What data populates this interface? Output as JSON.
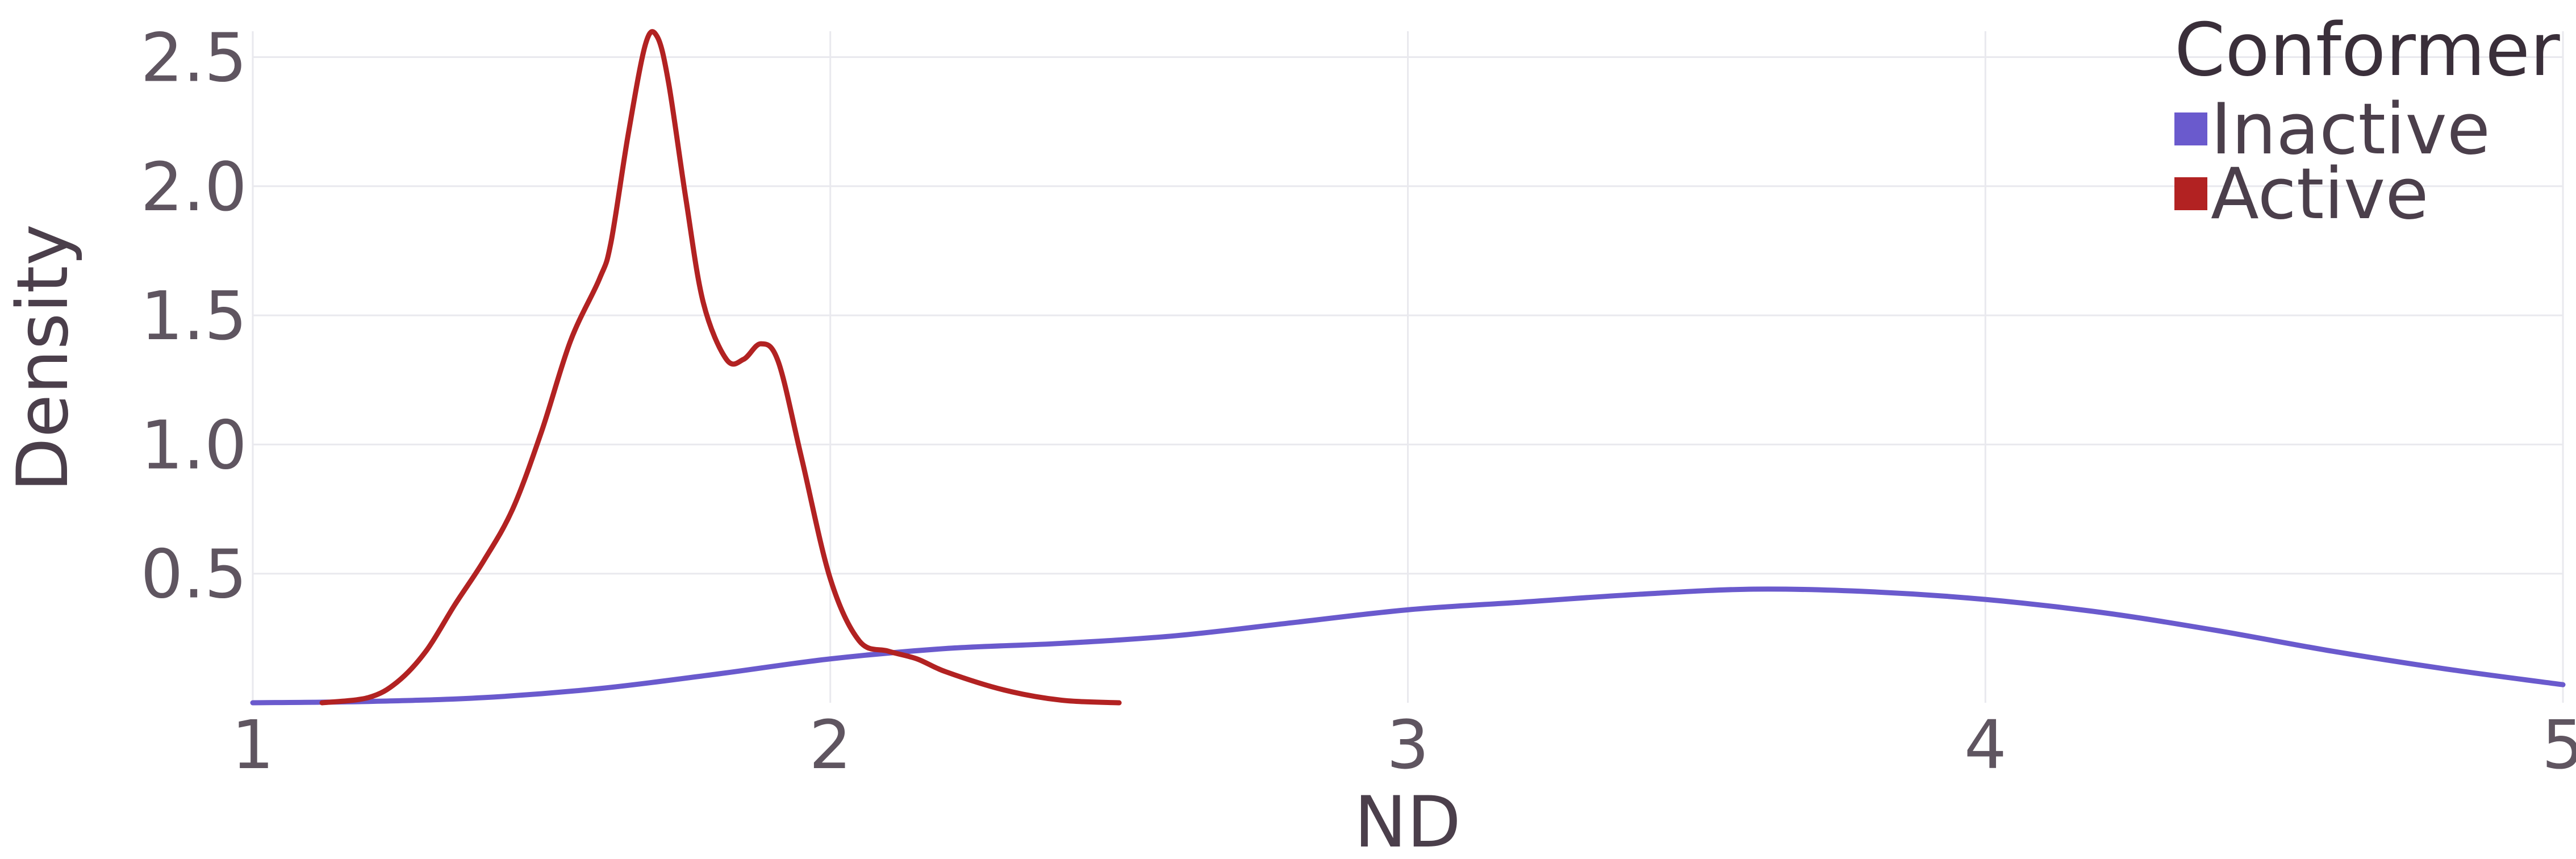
{
  "chart_data": {
    "type": "line",
    "title": "",
    "xlabel": "ND",
    "ylabel": "Density",
    "xlim": [
      1,
      5
    ],
    "ylim": [
      0,
      2.6
    ],
    "x_ticks": [
      1,
      2,
      3,
      4,
      5
    ],
    "x_tick_labels": [
      "1",
      "2",
      "3",
      "4",
      "5"
    ],
    "y_ticks": [
      0.5,
      1.0,
      1.5,
      2.0,
      2.5
    ],
    "y_tick_labels": [
      "0.5",
      "1.0",
      "1.5",
      "2.0",
      "2.5"
    ],
    "grid": true,
    "legend": {
      "title": "Conformer",
      "placement": "top-right"
    },
    "series": [
      {
        "name": "Inactive",
        "color": "#6a5acd",
        "points": [
          [
            1.0,
            0.0
          ],
          [
            1.2,
            0.005
          ],
          [
            1.4,
            0.02
          ],
          [
            1.6,
            0.055
          ],
          [
            1.8,
            0.11
          ],
          [
            2.0,
            0.17
          ],
          [
            2.2,
            0.21
          ],
          [
            2.4,
            0.23
          ],
          [
            2.6,
            0.26
          ],
          [
            2.8,
            0.31
          ],
          [
            3.0,
            0.36
          ],
          [
            3.2,
            0.39
          ],
          [
            3.4,
            0.42
          ],
          [
            3.6,
            0.44
          ],
          [
            3.8,
            0.43
          ],
          [
            4.0,
            0.4
          ],
          [
            4.2,
            0.35
          ],
          [
            4.4,
            0.28
          ],
          [
            4.6,
            0.2
          ],
          [
            4.8,
            0.13
          ],
          [
            5.0,
            0.07
          ]
        ]
      },
      {
        "name": "Active",
        "color": "#b22222",
        "points": [
          [
            1.12,
            0.0
          ],
          [
            1.2,
            0.02
          ],
          [
            1.25,
            0.08
          ],
          [
            1.3,
            0.2
          ],
          [
            1.35,
            0.38
          ],
          [
            1.4,
            0.55
          ],
          [
            1.45,
            0.75
          ],
          [
            1.5,
            1.05
          ],
          [
            1.55,
            1.4
          ],
          [
            1.6,
            1.64
          ],
          [
            1.62,
            1.78
          ],
          [
            1.65,
            2.2
          ],
          [
            1.68,
            2.55
          ],
          [
            1.7,
            2.58
          ],
          [
            1.72,
            2.4
          ],
          [
            1.75,
            1.95
          ],
          [
            1.78,
            1.55
          ],
          [
            1.82,
            1.33
          ],
          [
            1.85,
            1.33
          ],
          [
            1.88,
            1.39
          ],
          [
            1.91,
            1.32
          ],
          [
            1.95,
            0.95
          ],
          [
            2.0,
            0.48
          ],
          [
            2.05,
            0.24
          ],
          [
            2.1,
            0.2
          ],
          [
            2.15,
            0.17
          ],
          [
            2.2,
            0.12
          ],
          [
            2.3,
            0.05
          ],
          [
            2.4,
            0.01
          ],
          [
            2.5,
            0.0
          ]
        ]
      }
    ]
  }
}
